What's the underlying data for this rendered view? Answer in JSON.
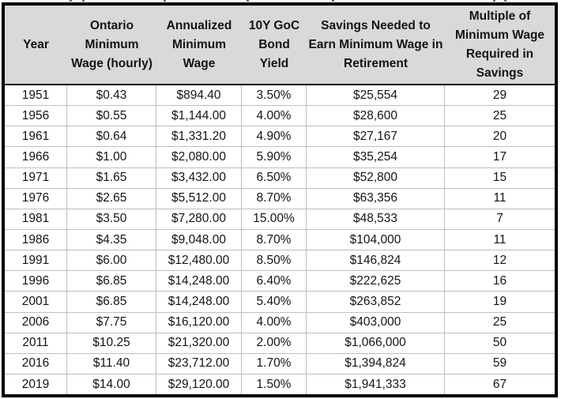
{
  "colors": {
    "header_bg": "#d9d9d9",
    "gridline": "#bebebe",
    "outer_border": "#000000",
    "text": "#141414"
  },
  "chart_data": {
    "type": "table",
    "title": "",
    "columns": [
      "Year",
      "Ontario Minimum Wage (hourly)",
      "Annualized Minimum Wage",
      "10Y GoC Bond Yield",
      "Savings Needed to Earn Minimum Wage in Retirement",
      "Multiple of Minimum Wage Required in Savings"
    ],
    "rows": [
      [
        "1951",
        "$0.43",
        "$894.40",
        "3.50%",
        "$25,554",
        "29"
      ],
      [
        "1956",
        "$0.55",
        "$1,144.00",
        "4.00%",
        "$28,600",
        "25"
      ],
      [
        "1961",
        "$0.64",
        "$1,331.20",
        "4.90%",
        "$27,167",
        "20"
      ],
      [
        "1966",
        "$1.00",
        "$2,080.00",
        "5.90%",
        "$35,254",
        "17"
      ],
      [
        "1971",
        "$1.65",
        "$3,432.00",
        "6.50%",
        "$52,800",
        "15"
      ],
      [
        "1976",
        "$2.65",
        "$5,512.00",
        "8.70%",
        "$63,356",
        "11"
      ],
      [
        "1981",
        "$3.50",
        "$7,280.00",
        "15.00%",
        "$48,533",
        "7"
      ],
      [
        "1986",
        "$4.35",
        "$9,048.00",
        "8.70%",
        "$104,000",
        "11"
      ],
      [
        "1991",
        "$6.00",
        "$12,480.00",
        "8.50%",
        "$146,824",
        "12"
      ],
      [
        "1996",
        "$6.85",
        "$14,248.00",
        "6.40%",
        "$222,625",
        "16"
      ],
      [
        "2001",
        "$6.85",
        "$14,248.00",
        "5.40%",
        "$263,852",
        "19"
      ],
      [
        "2006",
        "$7.75",
        "$16,120.00",
        "4.00%",
        "$403,000",
        "25"
      ],
      [
        "2011",
        "$10.25",
        "$21,320.00",
        "2.00%",
        "$1,066,000",
        "50"
      ],
      [
        "2016",
        "$11.40",
        "$23,712.00",
        "1.70%",
        "$1,394,824",
        "59"
      ],
      [
        "2019",
        "$14.00",
        "$29,120.00",
        "1.50%",
        "$1,941,333",
        "67"
      ]
    ]
  }
}
